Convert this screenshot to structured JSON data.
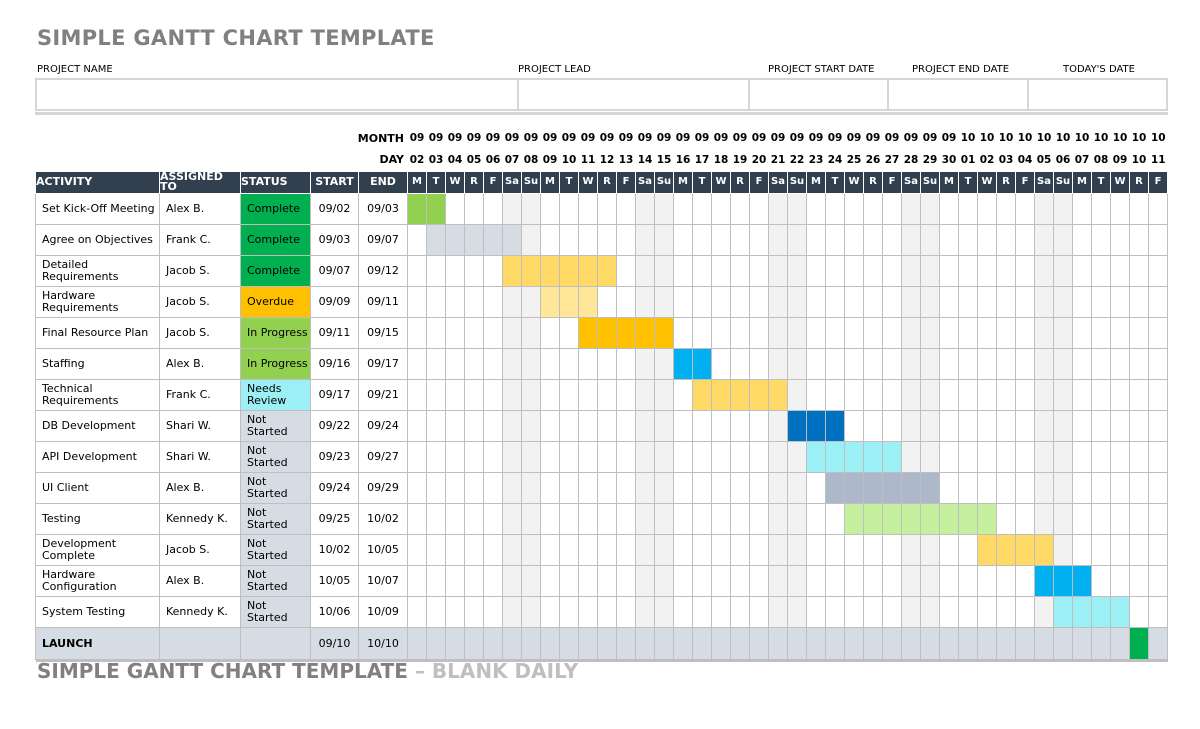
{
  "title": "SIMPLE GANTT CHART TEMPLATE",
  "footer_title": "SIMPLE GANTT CHART TEMPLATE",
  "footer_subtitle": " – BLANK DAILY",
  "info_fields": [
    "PROJECT NAME",
    "PROJECT LEAD",
    "PROJECT START DATE",
    "PROJECT END DATE",
    "TODAY'S DATE"
  ],
  "month_label": "MONTH",
  "day_label": "DAY",
  "columns": [
    "ACTIVITY",
    "ASSIGNED TO",
    "STATUS",
    "START",
    "END"
  ],
  "days": [
    {
      "month": "09",
      "day": "02",
      "dow": "M"
    },
    {
      "month": "09",
      "day": "03",
      "dow": "T"
    },
    {
      "month": "09",
      "day": "04",
      "dow": "W"
    },
    {
      "month": "09",
      "day": "05",
      "dow": "R"
    },
    {
      "month": "09",
      "day": "06",
      "dow": "F"
    },
    {
      "month": "09",
      "day": "07",
      "dow": "Sa"
    },
    {
      "month": "09",
      "day": "08",
      "dow": "Su"
    },
    {
      "month": "09",
      "day": "09",
      "dow": "M"
    },
    {
      "month": "09",
      "day": "10",
      "dow": "T"
    },
    {
      "month": "09",
      "day": "11",
      "dow": "W"
    },
    {
      "month": "09",
      "day": "12",
      "dow": "R"
    },
    {
      "month": "09",
      "day": "13",
      "dow": "F"
    },
    {
      "month": "09",
      "day": "14",
      "dow": "Sa"
    },
    {
      "month": "09",
      "day": "15",
      "dow": "Su"
    },
    {
      "month": "09",
      "day": "16",
      "dow": "M"
    },
    {
      "month": "09",
      "day": "17",
      "dow": "T"
    },
    {
      "month": "09",
      "day": "18",
      "dow": "W"
    },
    {
      "month": "09",
      "day": "19",
      "dow": "R"
    },
    {
      "month": "09",
      "day": "20",
      "dow": "F"
    },
    {
      "month": "09",
      "day": "21",
      "dow": "Sa"
    },
    {
      "month": "09",
      "day": "22",
      "dow": "Su"
    },
    {
      "month": "09",
      "day": "23",
      "dow": "M"
    },
    {
      "month": "09",
      "day": "24",
      "dow": "T"
    },
    {
      "month": "09",
      "day": "25",
      "dow": "W"
    },
    {
      "month": "09",
      "day": "26",
      "dow": "R"
    },
    {
      "month": "09",
      "day": "27",
      "dow": "F"
    },
    {
      "month": "09",
      "day": "28",
      "dow": "Sa"
    },
    {
      "month": "09",
      "day": "29",
      "dow": "Su"
    },
    {
      "month": "09",
      "day": "30",
      "dow": "M"
    },
    {
      "month": "10",
      "day": "01",
      "dow": "T"
    },
    {
      "month": "10",
      "day": "02",
      "dow": "W"
    },
    {
      "month": "10",
      "day": "03",
      "dow": "R"
    },
    {
      "month": "10",
      "day": "04",
      "dow": "F"
    },
    {
      "month": "10",
      "day": "05",
      "dow": "Sa"
    },
    {
      "month": "10",
      "day": "06",
      "dow": "Su"
    },
    {
      "month": "10",
      "day": "07",
      "dow": "M"
    },
    {
      "month": "10",
      "day": "08",
      "dow": "T"
    },
    {
      "month": "10",
      "day": "09",
      "dow": "W"
    },
    {
      "month": "10",
      "day": "10",
      "dow": "R"
    },
    {
      "month": "10",
      "day": "11",
      "dow": "F"
    }
  ],
  "tasks": [
    {
      "activity": "Set Kick-Off Meeting",
      "assigned": "Alex B.",
      "status": "Complete",
      "status_color": "#00b050",
      "start": "09/02",
      "end": "09/03",
      "bar_color": "#92d050"
    },
    {
      "activity": "Agree on Objectives",
      "assigned": "Frank C.",
      "status": "Complete",
      "status_color": "#00b050",
      "start": "09/03",
      "end": "09/07",
      "bar_color": "#d6dce4"
    },
    {
      "activity": "Detailed Requirements",
      "assigned": "Jacob S.",
      "status": "Complete",
      "status_color": "#00b050",
      "start": "09/07",
      "end": "09/12",
      "bar_color": "#ffd966"
    },
    {
      "activity": "Hardware Requirements",
      "assigned": "Jacob S.",
      "status": "Overdue",
      "status_color": "#ffc000",
      "start": "09/09",
      "end": "09/11",
      "bar_color": "#ffe699"
    },
    {
      "activity": "Final Resource Plan",
      "assigned": "Jacob S.",
      "status": "In Progress",
      "status_color": "#92d050",
      "start": "09/11",
      "end": "09/15",
      "bar_color": "#ffc000"
    },
    {
      "activity": "Staffing",
      "assigned": "Alex B.",
      "status": "In Progress",
      "status_color": "#92d050",
      "start": "09/16",
      "end": "09/17",
      "bar_color": "#00b0f0"
    },
    {
      "activity": "Technical Requirements",
      "assigned": "Frank C.",
      "status": "Needs Review",
      "status_color": "#9beff5",
      "start": "09/17",
      "end": "09/21",
      "bar_color": "#ffd966"
    },
    {
      "activity": "DB Development",
      "assigned": "Shari W.",
      "status": "Not Started",
      "status_color": "#d6dce4",
      "start": "09/22",
      "end": "09/24",
      "bar_color": "#0070c0"
    },
    {
      "activity": "API Development",
      "assigned": "Shari W.",
      "status": "Not Started",
      "status_color": "#d6dce4",
      "start": "09/23",
      "end": "09/27",
      "bar_color": "#9beff5"
    },
    {
      "activity": "UI Client",
      "assigned": "Alex B.",
      "status": "Not Started",
      "status_color": "#d6dce4",
      "start": "09/24",
      "end": "09/29",
      "bar_color": "#adb9ca"
    },
    {
      "activity": "Testing",
      "assigned": "Kennedy K.",
      "status": "Not Started",
      "status_color": "#d6dce4",
      "start": "09/25",
      "end": "10/02",
      "bar_color": "#c6efa0"
    },
    {
      "activity": "Development Complete",
      "assigned": "Jacob S.",
      "status": "Not Started",
      "status_color": "#d6dce4",
      "start": "10/02",
      "end": "10/05",
      "bar_color": "#ffd966"
    },
    {
      "activity": "Hardware Configuration",
      "assigned": "Alex B.",
      "status": "Not Started",
      "status_color": "#d6dce4",
      "start": "10/05",
      "end": "10/07",
      "bar_color": "#00b0f0"
    },
    {
      "activity": "System Testing",
      "assigned": "Kennedy K.",
      "status": "Not Started",
      "status_color": "#d6dce4",
      "start": "10/06",
      "end": "10/09",
      "bar_color": "#9beff5"
    }
  ],
  "launch": {
    "activity": "LAUNCH",
    "start": "09/10",
    "end": "10/10",
    "bar_color": "#00b050"
  }
}
